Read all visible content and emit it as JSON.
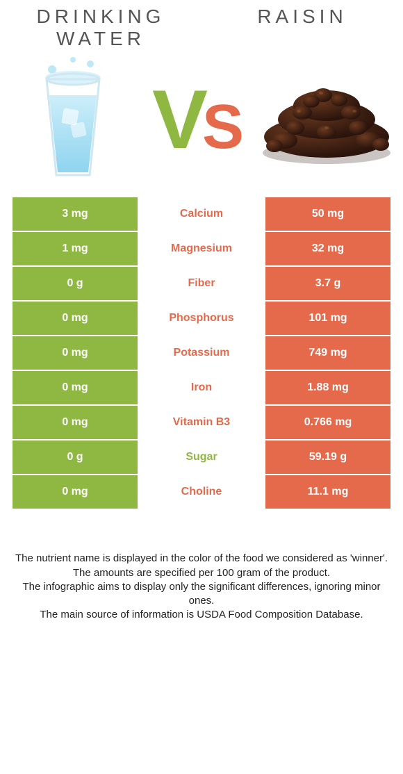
{
  "colors": {
    "left": "#8fb843",
    "right": "#e56a4c",
    "title_text": "#555555",
    "note_text": "#222222",
    "white": "#ffffff",
    "water_blue": "#9fd9f0",
    "water_blue_dark": "#5fbde0",
    "glass_line": "#c8e6f2",
    "raisin_dark": "#3a1d12",
    "raisin_light": "#6c3a20"
  },
  "typography": {
    "title_fontsize": 28,
    "title_letter_spacing": 6,
    "vs_v_fontsize": 120,
    "vs_s_fontsize": 90,
    "cell_fontsize": 16,
    "note_fontsize": 15
  },
  "header": {
    "left_title": "DRINKING\nWATER",
    "right_title": "RAISIN",
    "vs_left": "V",
    "vs_right": "S"
  },
  "rows": [
    {
      "nutrient": "Calcium",
      "left": "3 mg",
      "right": "50 mg",
      "winner": "right"
    },
    {
      "nutrient": "Magnesium",
      "left": "1 mg",
      "right": "32 mg",
      "winner": "right"
    },
    {
      "nutrient": "Fiber",
      "left": "0 g",
      "right": "3.7 g",
      "winner": "right"
    },
    {
      "nutrient": "Phosphorus",
      "left": "0 mg",
      "right": "101 mg",
      "winner": "right"
    },
    {
      "nutrient": "Potassium",
      "left": "0 mg",
      "right": "749 mg",
      "winner": "right"
    },
    {
      "nutrient": "Iron",
      "left": "0 mg",
      "right": "1.88 mg",
      "winner": "right"
    },
    {
      "nutrient": "Vitamin B3",
      "left": "0 mg",
      "right": "0.766 mg",
      "winner": "right"
    },
    {
      "nutrient": "Sugar",
      "left": "0 g",
      "right": "59.19 g",
      "winner": "left"
    },
    {
      "nutrient": "Choline",
      "left": "0 mg",
      "right": "11.1 mg",
      "winner": "right"
    }
  ],
  "notes": [
    "The nutrient name is displayed in the color of the food we considered as 'winner'.",
    "The amounts are specified per 100 gram of the product.",
    "The infographic aims to display only the significant differences, ignoring minor ones.",
    "The main source of information is USDA Food Composition Database."
  ]
}
